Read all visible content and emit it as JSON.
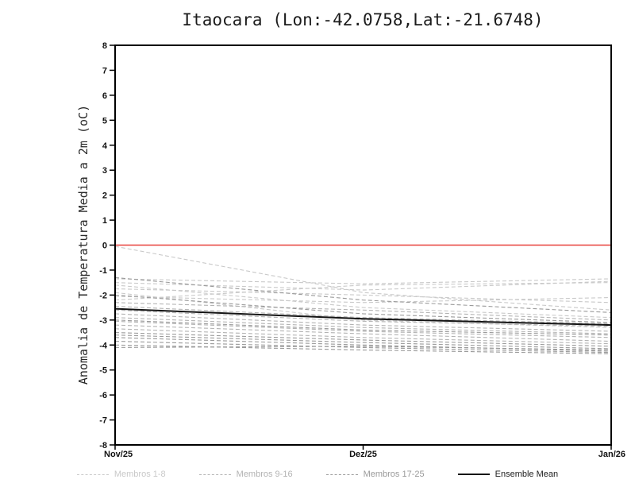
{
  "chart_data": {
    "type": "line",
    "title": "Itaocara (Lon:-42.0758,Lat:-21.6748)",
    "ylabel": "Anomalia de Temperatura Media a 2m (oC)",
    "x_categories": [
      "Nov/25",
      "Dez/25",
      "Jan/26"
    ],
    "ylim": [
      -8,
      8
    ],
    "y_ticks": [
      8,
      7,
      6,
      5,
      4,
      3,
      2,
      1,
      0,
      -1,
      -2,
      -3,
      -4,
      -5,
      -6,
      -7,
      -8
    ],
    "grid": false,
    "zero_line": {
      "y": 0,
      "color": "#e8403a"
    },
    "groups": [
      {
        "name": "Membros 1-8",
        "color": "#c9c9c9"
      },
      {
        "name": "Membros 9-16",
        "color": "#b3b3b3"
      },
      {
        "name": "Membros 17-25",
        "color": "#9a9a9a"
      }
    ],
    "ensemble_mean": {
      "name": "Ensemble Mean",
      "color": "#141414",
      "values": [
        -2.55,
        -2.95,
        -3.2
      ]
    },
    "members": [
      {
        "group": 0,
        "values": [
          -0.05,
          -1.9,
          -2.6
        ]
      },
      {
        "group": 0,
        "values": [
          -1.35,
          -1.55,
          -1.35
        ]
      },
      {
        "group": 0,
        "values": [
          -1.5,
          -1.8,
          -1.45
        ]
      },
      {
        "group": 0,
        "values": [
          -1.6,
          -2.5,
          -2.9
        ]
      },
      {
        "group": 0,
        "values": [
          -1.75,
          -2.0,
          -2.3
        ]
      },
      {
        "group": 0,
        "values": [
          -1.9,
          -3.0,
          -3.3
        ]
      },
      {
        "group": 0,
        "values": [
          -2.05,
          -2.3,
          -2.1
        ]
      },
      {
        "group": 0,
        "values": [
          -2.2,
          -1.6,
          -1.5
        ]
      },
      {
        "group": 1,
        "values": [
          -2.3,
          -2.6,
          -3.0
        ]
      },
      {
        "group": 1,
        "values": [
          -2.45,
          -2.9,
          -3.15
        ]
      },
      {
        "group": 1,
        "values": [
          -2.6,
          -3.05,
          -3.25
        ]
      },
      {
        "group": 1,
        "values": [
          -2.75,
          -3.2,
          -3.45
        ]
      },
      {
        "group": 1,
        "values": [
          -2.9,
          -3.3,
          -3.55
        ]
      },
      {
        "group": 1,
        "values": [
          -3.05,
          -3.45,
          -3.7
        ]
      },
      {
        "group": 1,
        "values": [
          -3.2,
          -3.55,
          -3.85
        ]
      },
      {
        "group": 1,
        "values": [
          -3.35,
          -3.7,
          -3.95
        ]
      },
      {
        "group": 2,
        "values": [
          -3.5,
          -3.8,
          -4.05
        ]
      },
      {
        "group": 2,
        "values": [
          -3.6,
          -3.9,
          -4.15
        ]
      },
      {
        "group": 2,
        "values": [
          -3.7,
          -4.0,
          -4.25
        ]
      },
      {
        "group": 2,
        "values": [
          -3.85,
          -4.1,
          -4.3
        ]
      },
      {
        "group": 2,
        "values": [
          -4.0,
          -4.2,
          -4.35
        ]
      },
      {
        "group": 2,
        "values": [
          -4.1,
          -4.05,
          -4.2
        ]
      },
      {
        "group": 2,
        "values": [
          -2.0,
          -2.75,
          -3.1
        ]
      },
      {
        "group": 2,
        "values": [
          -1.3,
          -2.2,
          -2.7
        ]
      },
      {
        "group": 2,
        "values": [
          -3.0,
          -3.4,
          -3.6
        ]
      }
    ],
    "legend_position": "bottom"
  }
}
